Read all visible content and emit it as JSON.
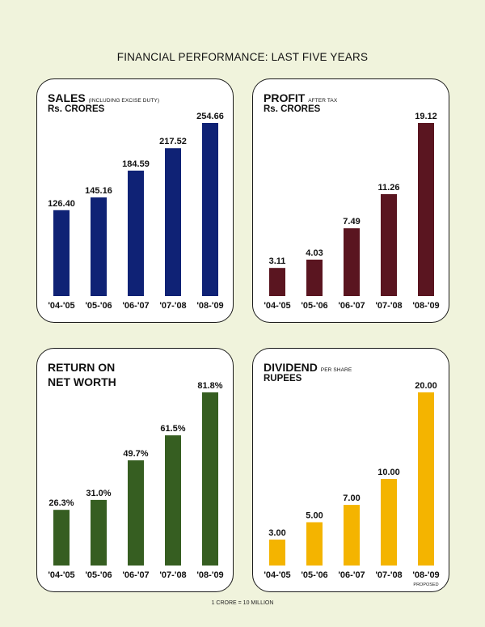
{
  "page": {
    "title": "FINANCIAL PERFORMANCE: LAST FIVE YEARS",
    "footnote": "1 CRORE = 10 MILLION"
  },
  "panels": [
    {
      "title_main": "SALES",
      "title_small": "(INCLUDING EXCISE DUTY)",
      "unit": "Rs. CRORES",
      "color": "#0f2275"
    },
    {
      "title_main": "PROFIT",
      "title_small": "AFTER TAX",
      "unit": "Rs. CRORES",
      "color": "#5a1520"
    },
    {
      "title_main": "RETURN ON",
      "title_main2": "NET WORTH",
      "title_small": "",
      "unit": "",
      "color": "#365e21"
    },
    {
      "title_main": "DIVIDEND",
      "title_small": "PER SHARE",
      "unit": "RUPEES",
      "color": "#f4b400"
    }
  ],
  "chart_data": [
    {
      "type": "bar",
      "title": "SALES (INCLUDING EXCISE DUTY)",
      "ylabel": "Rs. CRORES",
      "categories": [
        "'04-'05",
        "'05-'06",
        "'06-'07",
        "'07-'08",
        "'08-'09"
      ],
      "values": [
        126.4,
        145.16,
        184.59,
        217.52,
        254.66
      ],
      "labels": [
        "126.40",
        "145.16",
        "184.59",
        "217.52",
        "254.66"
      ],
      "ylim": [
        0,
        254.66
      ],
      "grid": false
    },
    {
      "type": "bar",
      "title": "PROFIT AFTER TAX",
      "ylabel": "Rs. CRORES",
      "categories": [
        "'04-'05",
        "'05-'06",
        "'06-'07",
        "'07-'08",
        "'08-'09"
      ],
      "values": [
        3.11,
        4.03,
        7.49,
        11.26,
        19.12
      ],
      "labels": [
        "3.11",
        "4.03",
        "7.49",
        "11.26",
        "19.12"
      ],
      "ylim": [
        0,
        19.12
      ],
      "grid": false
    },
    {
      "type": "bar",
      "title": "RETURN ON NET WORTH",
      "ylabel": "",
      "categories": [
        "'04-'05",
        "'05-'06",
        "'06-'07",
        "'07-'08",
        "'08-'09"
      ],
      "values": [
        26.3,
        31.0,
        49.7,
        61.5,
        81.8
      ],
      "labels": [
        "26.3%",
        "31.0%",
        "49.7%",
        "61.5%",
        "81.8%"
      ],
      "ylim": [
        0,
        81.8
      ],
      "grid": false
    },
    {
      "type": "bar",
      "title": "DIVIDEND PER SHARE",
      "ylabel": "RUPEES",
      "categories": [
        "'04-'05",
        "'05-'06",
        "'06-'07",
        "'07-'08",
        "'08-'09"
      ],
      "values": [
        3.0,
        5.0,
        7.0,
        10.0,
        20.0
      ],
      "labels": [
        "3.00",
        "5.00",
        "7.00",
        "10.00",
        "20.00"
      ],
      "ylim": [
        0,
        20
      ],
      "grid": false,
      "annotations": [
        {
          "category": "'08-'09",
          "text": "PROPOSED"
        }
      ]
    }
  ]
}
